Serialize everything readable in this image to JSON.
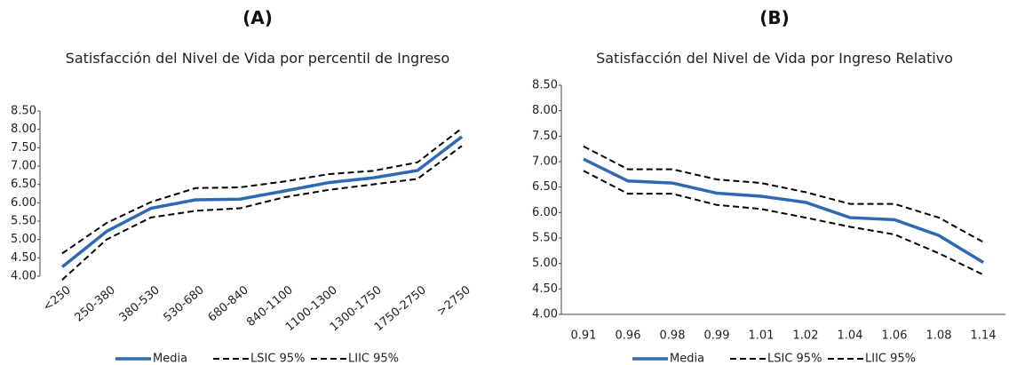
{
  "chart_data": [
    {
      "type": "line",
      "label": "(A)",
      "title": "Satisfacción del Nivel de Vida por percentil de Ingreso",
      "categories": [
        "<250",
        "250-380",
        "380-530",
        "530-680",
        "680-840",
        "840-1100",
        "1100-1300",
        "1300-1750",
        "1750-2750",
        ">2750"
      ],
      "series": [
        {
          "name": "Media",
          "color": "#2e6ab1",
          "line_style": "solid",
          "values": [
            4.25,
            5.22,
            5.85,
            6.08,
            6.1,
            6.32,
            6.55,
            6.68,
            6.88,
            7.8
          ]
        },
        {
          "name": "LSIC 95%",
          "color": "#000000",
          "line_style": "dashed",
          "values": [
            4.62,
            5.45,
            6.02,
            6.4,
            6.42,
            6.58,
            6.78,
            6.87,
            7.1,
            8.03
          ]
        },
        {
          "name": "LIIC 95%",
          "color": "#000000",
          "line_style": "dashed",
          "values": [
            3.9,
            5.0,
            5.6,
            5.78,
            5.85,
            6.15,
            6.35,
            6.5,
            6.65,
            7.55
          ]
        }
      ],
      "ylim": [
        4,
        8.5
      ],
      "yticks": [
        {
          "value": 4,
          "label": "4.00"
        },
        {
          "value": 4.5,
          "label": "4.50"
        },
        {
          "value": 5,
          "label": "5.00"
        },
        {
          "value": 5.5,
          "label": "5.50"
        },
        {
          "value": 6,
          "label": "6.00"
        },
        {
          "value": 6.5,
          "label": "6.50"
        },
        {
          "value": 7,
          "label": "7.00"
        },
        {
          "value": 7.5,
          "label": "7.50"
        },
        {
          "value": 8,
          "label": "8.00"
        },
        {
          "value": 8.5,
          "label": "8.50"
        }
      ],
      "grid": false,
      "legend": "bottom"
    },
    {
      "type": "line",
      "label": "(B)",
      "title": "Satisfacción del Nivel de Vida por Ingreso Relativo",
      "categories": [
        "0.91",
        "0.96",
        "0.98",
        "0.99",
        "1.01",
        "1.02",
        "1.04",
        "1.06",
        "1.08",
        "1.14"
      ],
      "series": [
        {
          "name": "Media",
          "color": "#2e6ab1",
          "line_style": "solid",
          "values": [
            7.05,
            6.62,
            6.58,
            6.38,
            6.32,
            6.2,
            5.9,
            5.86,
            5.55,
            5.02
          ]
        },
        {
          "name": "LSIC 95%",
          "color": "#000000",
          "line_style": "dashed",
          "values": [
            7.3,
            6.85,
            6.85,
            6.65,
            6.58,
            6.4,
            6.17,
            6.17,
            5.9,
            5.42
          ]
        },
        {
          "name": "LIIC 95%",
          "color": "#000000",
          "line_style": "dashed",
          "values": [
            6.82,
            6.37,
            6.37,
            6.15,
            6.07,
            5.9,
            5.72,
            5.57,
            5.2,
            4.78
          ]
        }
      ],
      "ylim": [
        4,
        8.5
      ],
      "yticks": [
        {
          "value": 4,
          "label": "4.00"
        },
        {
          "value": 4.5,
          "label": "4.50"
        },
        {
          "value": 5,
          "label": "5.00"
        },
        {
          "value": 5.5,
          "label": "5.50"
        },
        {
          "value": 6,
          "label": "6.00"
        },
        {
          "value": 6.5,
          "label": "6.50"
        },
        {
          "value": 7,
          "label": "7.00"
        },
        {
          "value": 7.5,
          "label": "7.50"
        },
        {
          "value": 8,
          "label": "8.00"
        },
        {
          "value": 8.5,
          "label": "8.50"
        }
      ],
      "grid": false,
      "legend": "bottom"
    }
  ]
}
